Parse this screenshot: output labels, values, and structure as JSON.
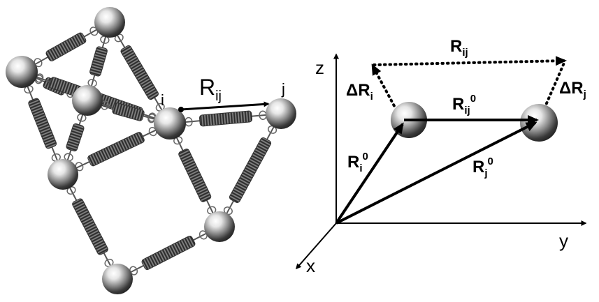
{
  "network": {
    "node_i_label": "i",
    "node_j_label": "j",
    "bond_label": {
      "main": "R",
      "sub": "ij"
    }
  },
  "vectors": {
    "axis_x": "x",
    "axis_y": "y",
    "axis_z": "z",
    "r_ij_top": {
      "main": "R",
      "sub": "ij"
    },
    "delta_r_i": {
      "delta": "Δ",
      "main": "R",
      "sub": "i"
    },
    "delta_r_j": {
      "delta": "Δ",
      "main": "R",
      "sub": "j"
    },
    "r_ij_0": {
      "main": "R",
      "sub": "ij",
      "sup": "0"
    },
    "r_i_0": {
      "main": "R",
      "sub": "i",
      "sup": "0"
    },
    "r_j_0": {
      "main": "R",
      "sub": "j",
      "sup": "0"
    }
  },
  "colors": {
    "line": "#000000",
    "sphere_light": "#ffffff",
    "sphere_dark": "#2a2a2a",
    "spring": "#4a4a4a"
  }
}
